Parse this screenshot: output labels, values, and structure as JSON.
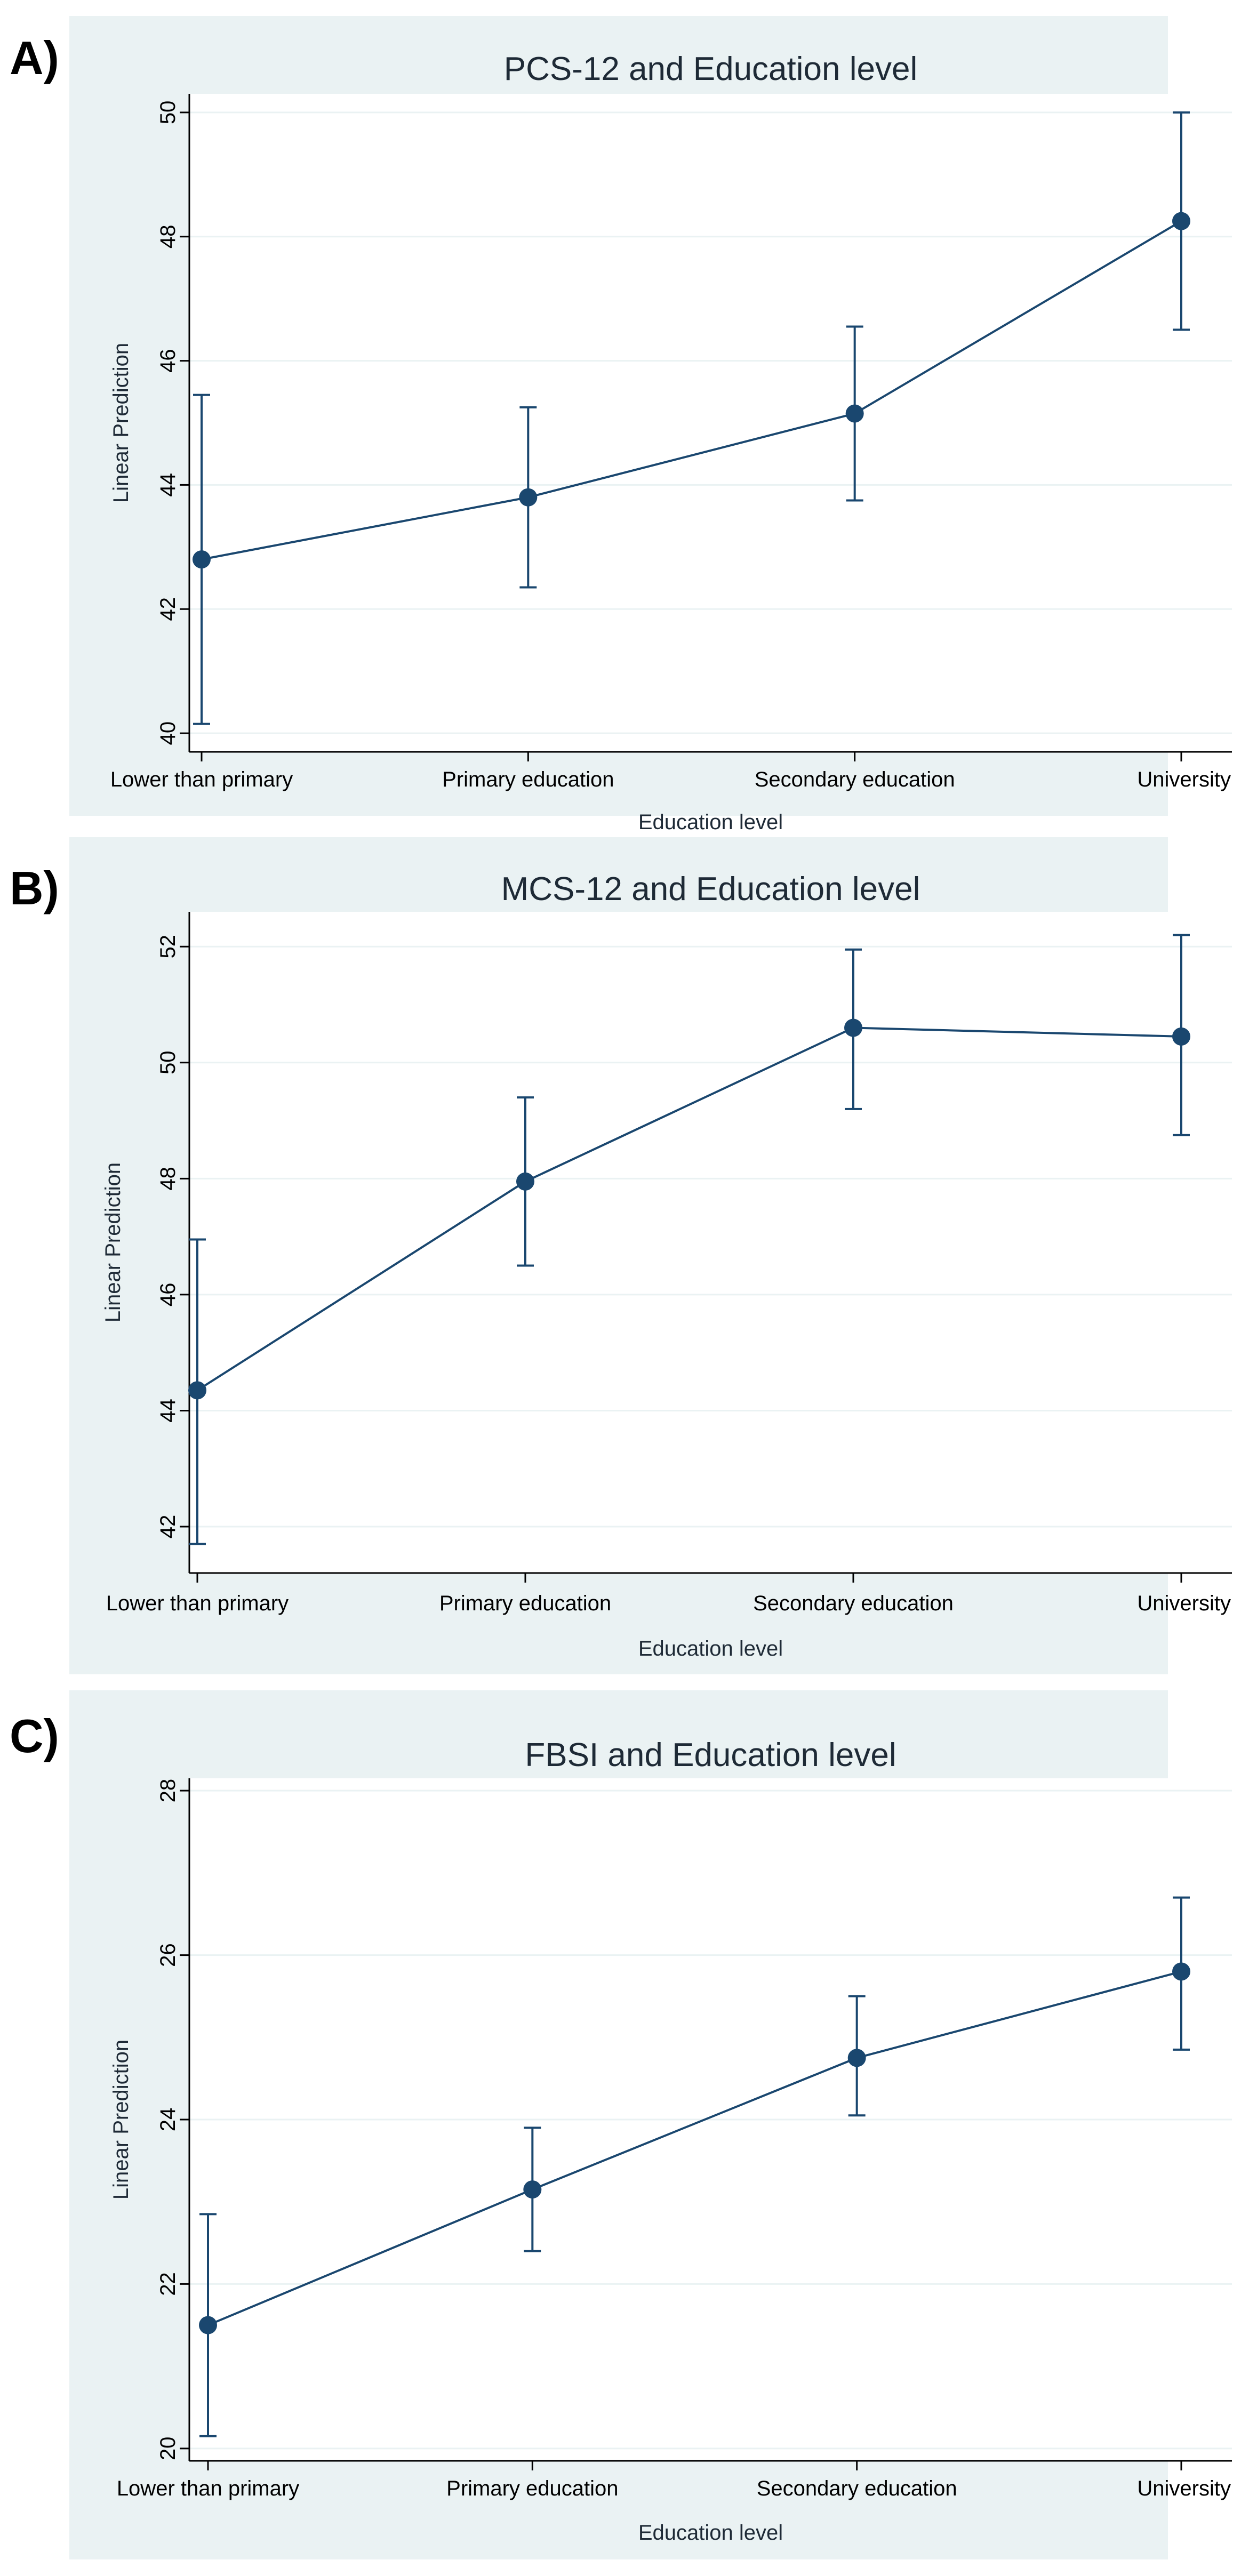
{
  "chart_data": [
    {
      "panel_label": "A)",
      "type": "line",
      "title": "PCS-12 and Education level",
      "xlabel": "Education level",
      "ylabel": "Linear Prediction",
      "categories": [
        "Lower than primary",
        "Primary education",
        "Secondary education",
        "University"
      ],
      "values": [
        42.8,
        43.8,
        45.15,
        48.25
      ],
      "ci_lower": [
        40.15,
        42.35,
        43.75,
        46.5
      ],
      "ci_upper": [
        45.45,
        45.25,
        46.55,
        50.0
      ],
      "ylim": [
        39.7,
        50.3
      ],
      "yticks": [
        "40",
        "42",
        "44",
        "46",
        "48",
        "50"
      ],
      "ytick_values": [
        40,
        42,
        44,
        46,
        48,
        50
      ],
      "grid": true,
      "colors": {
        "series": "#1a476f",
        "background": "#eaf2f3",
        "plot": "#ffffff"
      }
    },
    {
      "panel_label": "B)",
      "type": "line",
      "title": "MCS-12 and Education level",
      "xlabel": "Education level",
      "ylabel": "Linear Prediction",
      "categories": [
        "Lower than primary",
        "Primary education",
        "Secondary education",
        "University"
      ],
      "values": [
        44.35,
        47.95,
        50.6,
        50.45
      ],
      "ci_lower": [
        41.7,
        46.5,
        49.2,
        48.75
      ],
      "ci_upper": [
        46.95,
        49.4,
        51.95,
        52.2
      ],
      "ylim": [
        41.2,
        52.6
      ],
      "yticks": [
        "42",
        "44",
        "46",
        "48",
        "50",
        "52"
      ],
      "ytick_values": [
        42,
        44,
        46,
        48,
        50,
        52
      ],
      "grid": true,
      "colors": {
        "series": "#1a476f",
        "background": "#eaf2f3",
        "plot": "#ffffff"
      }
    },
    {
      "panel_label": "C)",
      "type": "line",
      "title": "FBSI and Education level",
      "xlabel": "Education level",
      "ylabel": "Linear Prediction",
      "categories": [
        "Lower than primary",
        "Primary education",
        "Secondary education",
        "University"
      ],
      "values": [
        21.5,
        23.15,
        24.75,
        25.8
      ],
      "ci_lower": [
        20.15,
        22.4,
        24.05,
        24.85
      ],
      "ci_upper": [
        22.85,
        23.9,
        25.5,
        26.7
      ],
      "ylim": [
        19.85,
        28.15
      ],
      "yticks": [
        "20",
        "22",
        "24",
        "26",
        "28"
      ],
      "ytick_values": [
        20,
        22,
        24,
        26,
        28
      ],
      "grid": true,
      "colors": {
        "series": "#1a476f",
        "background": "#eaf2f3",
        "plot": "#ffffff"
      }
    }
  ]
}
